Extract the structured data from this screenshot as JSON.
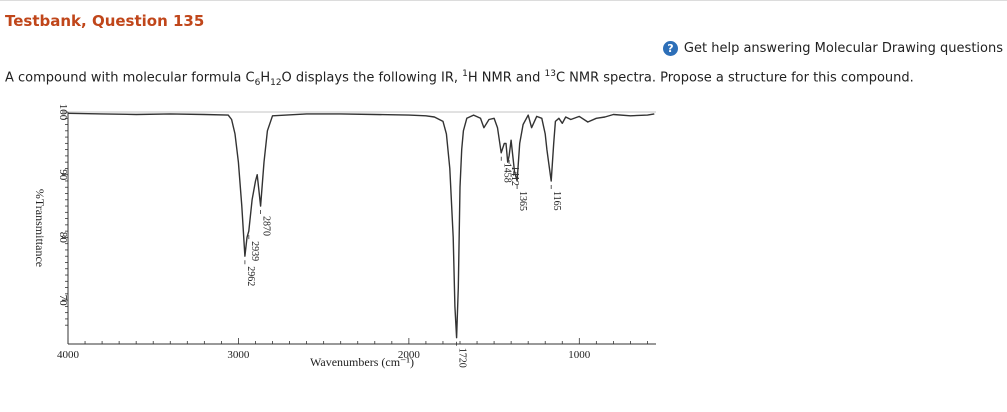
{
  "title": "Testbank, Question 135",
  "help": {
    "icon": "help-circle-icon",
    "label": "Get help answering Molecular Drawing questions"
  },
  "question": {
    "p1": "A compound with molecular formula C",
    "s1": "6",
    "p2": "H",
    "s2": "12",
    "p3": "O displays the following IR, ",
    "sup1": "1",
    "p4": "H NMR and ",
    "sup2": "13",
    "p5": "C NMR spectra. Propose a structure for this compound."
  },
  "chart_data": {
    "type": "line",
    "title": "",
    "xlabel": "Wavenumbers (cm⁻¹)",
    "ylabel": "%Transmittance",
    "xlim": [
      4000,
      550
    ],
    "ylim": [
      63,
      100
    ],
    "x_tick_labels": [
      "4000",
      "3000",
      "2000",
      "1000"
    ],
    "x_ticks": [
      4000,
      3000,
      2000,
      1000
    ],
    "y_tick_labels": [
      "100",
      "90",
      "80",
      "70"
    ],
    "y_ticks": [
      100,
      90,
      80,
      70
    ],
    "grid": false,
    "series": [
      {
        "x": [
          4000,
          3800,
          3600,
          3400,
          3200,
          3060,
          3040,
          3020,
          3000,
          2980,
          2962,
          2950,
          2939,
          2920,
          2900,
          2890,
          2870,
          2850,
          2830,
          2800,
          2600,
          2400,
          2200,
          2000,
          1900,
          1850,
          1800,
          1780,
          1760,
          1740,
          1730,
          1720,
          1710,
          1700,
          1690,
          1680,
          1660,
          1620,
          1580,
          1560,
          1530,
          1500,
          1480,
          1458,
          1440,
          1430,
          1420,
          1412,
          1400,
          1390,
          1380,
          1365,
          1350,
          1330,
          1300,
          1280,
          1250,
          1220,
          1200,
          1190,
          1180,
          1165,
          1150,
          1140,
          1120,
          1100,
          1080,
          1050,
          1000,
          950,
          900,
          850,
          800,
          700,
          600,
          560
        ],
        "y": [
          99.8,
          99.7,
          99.6,
          99.7,
          99.6,
          99.5,
          98.8,
          96.5,
          92,
          85,
          77,
          80,
          81,
          86,
          89,
          90,
          85,
          92,
          97,
          99.4,
          99.7,
          99.7,
          99.6,
          99.5,
          99.4,
          99.2,
          98.5,
          96.5,
          91,
          80,
          69,
          64,
          72,
          88,
          94,
          97,
          99,
          99.5,
          99,
          97.5,
          98.8,
          99,
          97.5,
          93.5,
          95,
          95,
          92,
          93,
          95.5,
          93,
          90.5,
          89,
          95,
          98,
          99.5,
          97.5,
          99.3,
          99,
          96.5,
          94,
          92,
          89,
          95,
          98.5,
          99,
          98.2,
          99.2,
          98.8,
          99.3,
          98.4,
          99,
          99.2,
          99.6,
          99.4,
          99.5,
          99.7
        ]
      }
    ],
    "annotations": [
      {
        "label": "2962",
        "x": 2962
      },
      {
        "label": "2939",
        "x": 2939
      },
      {
        "label": "2870",
        "x": 2870
      },
      {
        "label": "1720",
        "x": 1720
      },
      {
        "label": "1458",
        "x": 1458
      },
      {
        "label": "1412",
        "x": 1412
      },
      {
        "label": "1365",
        "x": 1365
      },
      {
        "label": "1165",
        "x": 1165
      }
    ]
  }
}
